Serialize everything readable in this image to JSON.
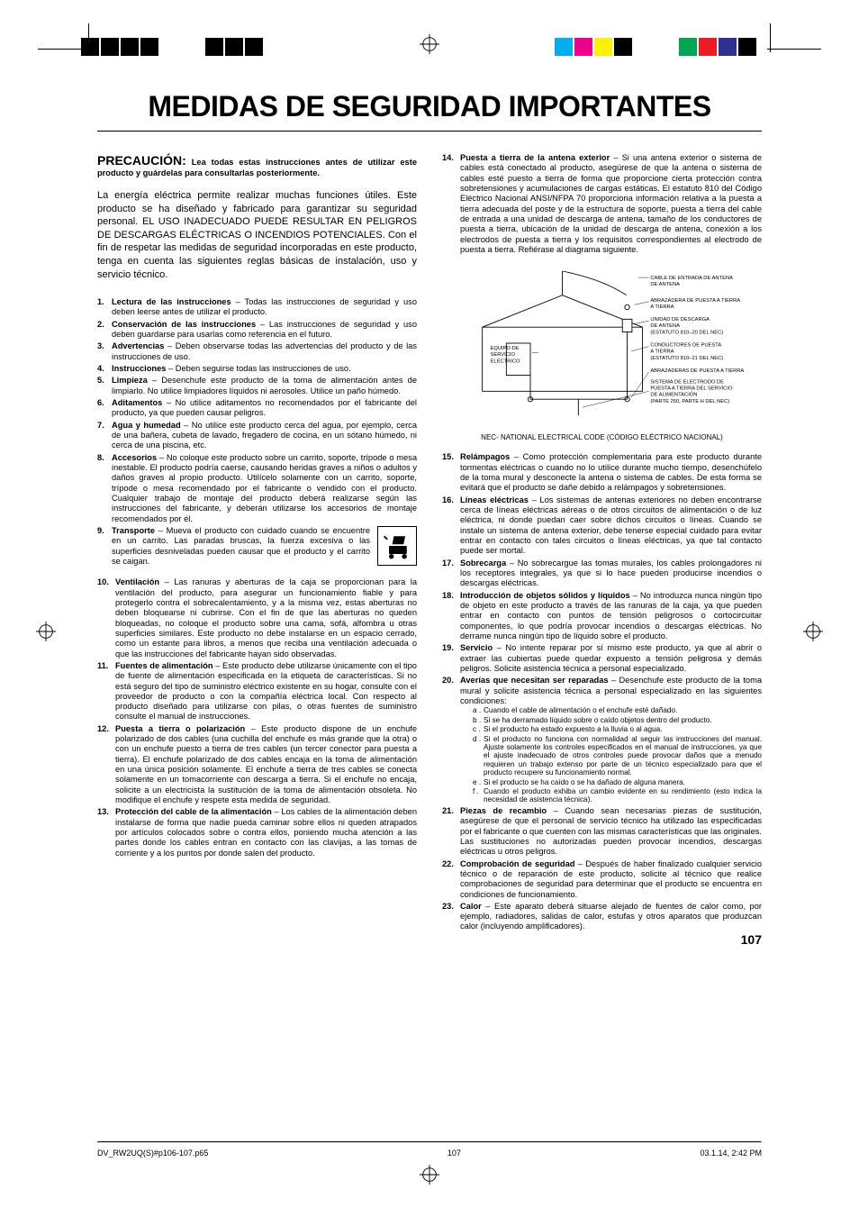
{
  "page_number": "107",
  "title": "MEDIDAS DE SEGURIDAD IMPORTANTES",
  "precaution_label": "PRECAUCIÓN:",
  "precaution_text": "Lea todas estas instrucciones antes de utilizar este producto y guárdelas para consultarlas posteriormente.",
  "intro": "La energía eléctrica permite realizar muchas funciones útiles. Este producto se ha diseñado y fabricado para garantizar su seguridad personal. EL USO INADECUADO PUEDE RESULTAR EN PELIGROS DE DESCARGAS ELÉCTRICAS O INCENDIOS POTENCIALES. Con el fin de respetar las medidas de seguridad incorporadas en este producto, tenga en cuenta las siguientes reglas básicas de instalación, uso y servicio técnico.",
  "items_left_a": [
    {
      "num": "1.",
      "heading": "Lectura de las instrucciones",
      "body": " – Todas las instrucciones de seguridad y uso deben leerse antes de utilizar el producto."
    },
    {
      "num": "2.",
      "heading": "Conservación de las instrucciones",
      "body": " – Las instrucciones de seguridad y uso deben guardarse para usarlas como referencia en el futuro."
    },
    {
      "num": "3.",
      "heading": "Advertencias",
      "body": " – Deben observarse todas las advertencias del producto y de las instrucciones de uso."
    },
    {
      "num": "4.",
      "heading": "Instrucciones",
      "body": " – Deben seguirse todas las instrucciones de uso."
    },
    {
      "num": "5.",
      "heading": "Limpieza",
      "body": " – Desenchufe este producto de la toma de alimentación antes de limpiarlo. No utilice limpiadores líquidos ni aerosoles. Utilice un paño húmedo."
    },
    {
      "num": "6.",
      "heading": "Aditamentos",
      "body": " – No utilice aditamentos no recomendados por el fabricante del producto, ya que pueden causar peligros."
    },
    {
      "num": "7.",
      "heading": "Agua y humedad",
      "body": " – No utilice este producto cerca del agua, por ejemplo, cerca de una bañera, cubeta de lavado, fregadero de cocina, en un sótano húmedo, ni cerca de una piscina, etc."
    },
    {
      "num": "8.",
      "heading": "Accesorios",
      "body": " – No coloque este producto sobre un carrito, soporte, trípode o mesa inestable. El producto podría caerse, causando heridas graves a niños o adultos y daños graves al propio producto. Utilícelo solamente con un carrito, soporte, trípode o mesa recomendado por el fabricante o vendido con el producto. Cualquier trabajo de montaje del producto deberá realizarse según las instrucciones del fabricante, y deberán utilizarse los accesorios de montaje recomendados por él."
    }
  ],
  "item_transport": {
    "num": "9.",
    "heading": "Transporte",
    "body": " – Mueva el producto con cuidado cuando se encuentre en un carrito. Las paradas bruscas, la fuerza excesiva o las superficies desniveladas pueden causar que el producto y el carrito se caigan."
  },
  "items_left_b": [
    {
      "num": "10.",
      "heading": "Ventilación",
      "body": " – Las ranuras y aberturas de la caja se proporcionan para la ventilación del producto, para asegurar un funcionamiento fiable y para protegerlo contra el sobrecalentamiento, y a la misma vez, estas aberturas no deben bloquearse ni cubrirse. Con el fin de que las aberturas no queden bloqueadas, no coloque el producto sobre una cama, sofá, alfombra u otras superficies similares. Este producto no debe instalarse en un espacio cerrado, como un estante para libros, a menos que reciba una ventilación adecuada o que las instrucciones del fabricante hayan sido observadas."
    },
    {
      "num": "11.",
      "heading": "Fuentes de alimentación",
      "body": " – Este producto debe utilizarse únicamente con el tipo de fuente de alimentación especificada en la etiqueta de características. Si no está seguro del tipo de suministro eléctrico existente en su hogar, consulte con el proveedor de producto o con la compañía eléctrica local. Con respecto al producto diseñado para utilizarse con pilas, o otras fuentes de suministro consulte el manual de instrucciones."
    },
    {
      "num": "12.",
      "heading": "Puesta a tierra o polarización",
      "body": " – Este producto dispone de un enchufe polarizado de dos cables (una cuchilla del enchufe es más grande que la otra) o con un enchufe puesto a tierra de tres cables (un tercer conector para puesta a tierra). El enchufe polarizado de dos cables encaja en la toma de alimentación en una única posición solamente. El enchufe a tierra de tres cables se conecta solamente en un tomacorriente con descarga a tierra. Si el enchufe no encaja, solicite a un electricista la sustitución de la toma de alimentación obsoleta. No modifique el enchufe y respete esta medida de seguridad."
    },
    {
      "num": "13.",
      "heading": "Protección del cable de la alimentación",
      "body": " – Los cables de la alimentación deben instalarse de forma que nadie pueda caminar sobre ellos ni queden atrapados por artículos colocados sobre o contra ellos, poniendo mucha atención a las partes donde los cables entran en contacto con las clavijas, a las tomas de corriente y a los puntos por donde salen del producto."
    }
  ],
  "item14": {
    "num": "14.",
    "heading": "Puesta a tierra de la antena exterior",
    "body": " – Si una antena exterior o sistema de cables está conectado al producto, asegúrese de que la antena o sistema de cables esté puesto a tierra de forma que proporcione cierta protección contra sobretensiones y acumulaciones de cargas estáticas. El estatuto 810 del Código Eléctrico Nacional ANSI/NFPA 70 proporciona información relativa a la puesta a tierra adecuada del poste y de la estructura de soporte, puesta a tierra del cable de entrada a una unidad de descarga de antena, tamaño de los conductores de puesta a tierra, ubicación de la unidad de descarga de antena, conexión a los electrodos de puesta a tierra y los requisitos correspondientes al electrodo de puesta a tierra. Refiérase al diagrama siguiente."
  },
  "diagram_labels": {
    "cable": "CABLE DE ENTRADA DE ANTENA",
    "clamp": "ABRAZADERA DE PUESTA A TIERRA",
    "discharge": "UNIDAD DE DESCARGA DE ANTENA (ESTATUTO 810–20 DEL NEC)",
    "conductors": "CONDUCTORES DE PUESTA A TIERRA (ESTATUTO 810–21 DEL NEC)",
    "clamps2": "ABRAZADERAS DE PUESTA A TIERRA",
    "electrode": "SISTEMA DE ELECTRODO DE PUESTA A TIERRA DEL SERVICIO DE ALIMENTACIÓN (PARTE 250, PARTE H DEL NEC)",
    "service": "EQUIPO DE SERVICIO ELÉCTRICO"
  },
  "diagram_note": "NEC- NATIONAL ELECTRICAL CODE (CÓDIGO ELÉCTRICO NACIONAL)",
  "items_right_b": [
    {
      "num": "15.",
      "heading": "Relámpagos",
      "body": " – Como protección complementaria para este producto durante tormentas eléctricas o cuando no lo utilice durante mucho tiempo, desenchúfelo de la toma mural y desconecte la antena o sistema de cables. De esta forma se evitará que el producto se dañe debido a relámpagos y sobretensiones."
    },
    {
      "num": "16.",
      "heading": "Líneas eléctricas",
      "body": " – Los sistemas de antenas exteriores no deben encontrarse cerca de líneas eléctricas aéreas o de otros circuitos de alimentación o de luz eléctrica, ni donde puedan caer sobre dichos circuitos o líneas. Cuando se instale un sistema de antena exterior, debe tenerse especial cuidado para evitar entrar en contacto con tales circuitos o líneas eléctricas, ya que tal contacto puede ser mortal."
    },
    {
      "num": "17.",
      "heading": "Sobrecarga",
      "body": " – No sobrecargue las tomas murales, los cables prolongadores ni los receptores integrales, ya que si lo hace pueden producirse incendios o descargas eléctricas."
    },
    {
      "num": "18.",
      "heading": "Introducción de objetos sólidos y líquidos",
      "body": " – No introduzca nunca ningún tipo de objeto en este producto a través de las ranuras de la caja, ya que pueden entrar en contacto con puntos de tensión peligrosos o cortocircuitar componentes, lo que podría provocar incendios o descargas eléctricas. No derrame nunca ningún tipo de líquido sobre el producto."
    },
    {
      "num": "19.",
      "heading": "Servicio",
      "body": " – No intente reparar por sí mismo este producto, ya que al abrir o extraer las cubiertas puede quedar expuesto a tensión peligrosa y demás peligros. Solicite asistencia técnica a personal especializado."
    }
  ],
  "item20": {
    "num": "20.",
    "heading": "Averías que necesitan ser reparadas",
    "body": " – Desenchufe este producto de la toma mural y solicite asistencia técnica a personal especializado en las siguientes condiciones:"
  },
  "sub20": [
    {
      "l": "a .",
      "t": "Cuando el cable de alimentación o el enchufe esté dañado."
    },
    {
      "l": "b .",
      "t": "Si se ha derramado líquido sobre o caído objetos dentro del producto."
    },
    {
      "l": "c .",
      "t": "Si el producto ha estado expuesto a la lluvia o al agua."
    },
    {
      "l": "d .",
      "t": "Si el producto no funciona con normalidad al seguir las instrucciones del manual. Ajuste solamente los controles especificados en el manual de instrucciones, ya que el ajuste inadecuado de otros controles puede provocar daños que a menudo requieren un trabajo extenso por parte de un técnico especializado para que el producto recupere su funcionamiento normal."
    },
    {
      "l": "e .",
      "t": "Si el producto se ha caído o se ha dañado de alguna manera."
    },
    {
      "l": "f .",
      "t": "Cuando el producto exhiba un cambio evidente en su rendimiento (esto indica la necesidad de asistencia técnica)."
    }
  ],
  "items_right_c": [
    {
      "num": "21.",
      "heading": "Piezas de recambio",
      "body": " – Cuando sean necesarias piezas de sustitución, asegúrese de que el personal de servicio técnico ha utilizado las especificadas por el fabricante o que cuenten con las mismas características que las originales. Las sustituciones no autorizadas pueden provocar incendios, descargas eléctricas u otros peligros."
    },
    {
      "num": "22.",
      "heading": "Comprobación de seguridad",
      "body": " – Después de haber finalizado cualquier servicio técnico o de reparación de este producto, solicite al técnico que realice comprobaciones de seguridad para determinar que el producto se encuentra en condiciones de funcionamiento."
    },
    {
      "num": "23.",
      "heading": "Calor",
      "body": " – Este aparato deberá situarse alejado de fuentes de calor como, por ejemplo, radiadores, salidas de calor, estufas y otros aparatos que produzcan calor (incluyendo amplificadores)."
    }
  ],
  "footer": {
    "file": "DV_RW2UQ(S)#p106-107.p65",
    "page": "107",
    "date": "03.1.14, 2:42 PM"
  },
  "printmarks": {
    "black": "#000000",
    "cyan": "#00aeef",
    "magenta": "#ec008c",
    "yellow": "#fff200",
    "green": "#00a651",
    "red": "#ed1c24",
    "blue": "#2e3192"
  }
}
